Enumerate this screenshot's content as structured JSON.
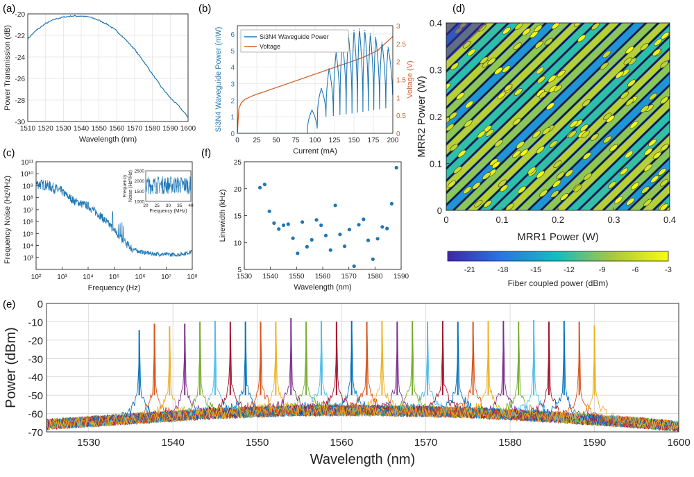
{
  "panels": {
    "a": "(a)",
    "b": "(b)",
    "c": "(c)",
    "d": "(d)",
    "e": "(e)",
    "f": "(f)"
  },
  "colors": {
    "blue": "#1f77b4",
    "orange": "#d1622a",
    "comb": [
      "#0072BD",
      "#D95319",
      "#EDB120",
      "#7E2F8E",
      "#77AC30",
      "#4DBEEE",
      "#A2142F"
    ]
  },
  "chart_data": [
    {
      "id": "a",
      "type": "line",
      "xlabel": "Wavelength (nm)",
      "ylabel": "Power Transmission (dB)",
      "xlim": [
        1510,
        1600
      ],
      "ylim": [
        -30,
        -20
      ],
      "xticks": [
        1510,
        1520,
        1530,
        1540,
        1550,
        1560,
        1570,
        1580,
        1590,
        1600
      ],
      "yticks": [
        -20,
        -22,
        -24,
        -26,
        -28,
        -30
      ],
      "grid": true,
      "x": [
        1510,
        1515,
        1520,
        1525,
        1530,
        1535,
        1540,
        1545,
        1550,
        1555,
        1560,
        1565,
        1570,
        1575,
        1580,
        1585,
        1590,
        1595,
        1600
      ],
      "y": [
        -22.3,
        -21.5,
        -20.9,
        -20.5,
        -20.3,
        -20.2,
        -20.2,
        -20.3,
        -20.6,
        -21.0,
        -21.6,
        -22.4,
        -23.3,
        -24.4,
        -25.6,
        -26.8,
        -27.8,
        -28.6,
        -29.6
      ]
    },
    {
      "id": "b",
      "type": "line",
      "xlabel": "Current (mA)",
      "ylabel": "Si3N4 Waveguide Power (mW)",
      "y2label": "Voltage (V)",
      "xlim": [
        0,
        200
      ],
      "ylim": [
        0,
        6.5
      ],
      "y2lim": [
        0,
        3
      ],
      "xticks": [
        0,
        25,
        50,
        75,
        100,
        125,
        150,
        175,
        200
      ],
      "yticks": [
        0,
        1,
        2,
        3,
        4,
        5,
        6
      ],
      "y2ticks": [
        "0",
        "0.5",
        "1",
        "1.5",
        "2",
        "2.5",
        "3"
      ],
      "legend": [
        "Si3N4 Waveguide Power",
        "Voltage"
      ],
      "legend_position": "top-left",
      "grid": true,
      "voltage": {
        "x": [
          0,
          2,
          5,
          10,
          20,
          40,
          60,
          80,
          100,
          120,
          140,
          160,
          180,
          200
        ],
        "y": [
          0,
          0.7,
          0.85,
          0.95,
          1.05,
          1.2,
          1.35,
          1.5,
          1.65,
          1.8,
          1.95,
          2.1,
          2.3,
          2.7
        ]
      },
      "power_peaks": {
        "x": [
          96,
          108,
          118,
          127,
          135,
          143,
          150,
          157,
          164,
          171,
          178,
          186,
          194
        ],
        "y": [
          1.4,
          2.7,
          3.9,
          4.9,
          5.6,
          5.9,
          6.2,
          6.3,
          6.2,
          6.0,
          5.8,
          5.5,
          5.2
        ]
      },
      "power_onset_mA": 90
    },
    {
      "id": "c",
      "type": "line",
      "xlabel": "Frequency (Hz)",
      "ylabel": "Frequency Noise (Hz²/Hz)",
      "xscale": "log",
      "yscale": "log",
      "xlim": [
        100,
        100000000
      ],
      "ylim": [
        100,
        100000000000
      ],
      "xtick_labels": [
        "10²",
        "10³",
        "10⁴",
        "10⁵",
        "10⁶",
        "10⁷",
        "10⁸"
      ],
      "ytick_labels": [
        "10³",
        "10⁴",
        "10⁵",
        "10⁶",
        "10⁷",
        "10⁸",
        "10⁹",
        "10¹⁰",
        "10¹¹"
      ],
      "x": [
        100,
        300,
        1000,
        3000,
        10000,
        30000,
        100000,
        200000,
        500000,
        1000000,
        3000000,
        10000000,
        30000000,
        100000000
      ],
      "y": [
        1500000000,
        1000000000,
        300000000,
        50000000,
        20000000,
        3000000,
        200000,
        30000,
        5000,
        3000,
        2000,
        1800,
        1700,
        3000
      ],
      "inset": {
        "xlabel": "Frequency (MHz)",
        "ylabel": "Frequency Noise (Hz²/Hz)",
        "xlim": [
          20,
          40
        ],
        "ylim": [
          1000,
          2500
        ],
        "xticks": [
          20,
          25,
          30,
          35,
          40
        ],
        "yticks": [
          1000,
          1500,
          2000,
          2500
        ],
        "mean": 1800
      }
    },
    {
      "id": "d",
      "type": "heatmap",
      "xlabel": "MRR1 Power (W)",
      "ylabel": "MRR2 Power (W)",
      "xlim": [
        0,
        0.4
      ],
      "ylim": [
        0,
        0.4
      ],
      "xticks": [
        "0",
        "0.1",
        "0.2",
        "0.3",
        "0.4"
      ],
      "yticks": [
        "0",
        "0.1",
        "0.2",
        "0.3",
        "0.4"
      ],
      "colorbar_label": "Fiber coupled power (dBm)",
      "colorbar_ticks": [
        "-21",
        "-18",
        "-15",
        "-12",
        "-9",
        "-6",
        "-3"
      ],
      "colorbar_range": [
        -23,
        -3
      ]
    },
    {
      "id": "e",
      "type": "line",
      "xlabel": "Wavelength (nm)",
      "ylabel": "Power (dBm)",
      "xlim": [
        1525,
        1600
      ],
      "ylim": [
        -70,
        0
      ],
      "xticks": [
        1530,
        1540,
        1550,
        1560,
        1570,
        1580,
        1590,
        1600
      ],
      "yticks": [
        0,
        -10,
        -20,
        -30,
        -40,
        -50,
        -60,
        -70
      ],
      "grid": true,
      "peak_wavelengths": [
        1536.0,
        1537.8,
        1539.6,
        1541.4,
        1543.2,
        1545.0,
        1546.8,
        1548.6,
        1550.4,
        1552.2,
        1554.0,
        1555.8,
        1557.6,
        1559.4,
        1561.2,
        1563.0,
        1564.8,
        1566.6,
        1568.4,
        1570.2,
        1572.0,
        1573.8,
        1575.6,
        1577.4,
        1579.2,
        1581.0,
        1582.8,
        1584.6,
        1586.4,
        1588.2,
        1590.0
      ],
      "peak_powers": [
        -14.5,
        -11,
        -12.5,
        -11,
        -10,
        -9.5,
        -10,
        -10,
        -10,
        -10,
        -8,
        -10,
        -9.5,
        -10,
        -9.5,
        -10,
        -9.5,
        -10,
        -9.5,
        -10,
        -9.5,
        -10,
        -10,
        -9.5,
        -9.5,
        -10,
        -9,
        -10,
        -9.5,
        -10,
        -12
      ],
      "floor": {
        "x": [
          1525,
          1535,
          1545,
          1555,
          1565,
          1575,
          1585,
          1595,
          1600
        ],
        "y": [
          -64,
          -61,
          -58,
          -56.5,
          -56.5,
          -57.5,
          -60,
          -63,
          -65
        ]
      }
    },
    {
      "id": "f",
      "type": "scatter",
      "xlabel": "Wavelength (nm)",
      "ylabel": "Linewidth (kHz)",
      "xlim": [
        1530,
        1590
      ],
      "ylim": [
        5,
        25
      ],
      "xticks": [
        1530,
        1540,
        1550,
        1560,
        1570,
        1580,
        1590
      ],
      "yticks": [
        5,
        10,
        15,
        20,
        25
      ],
      "x": [
        1536.0,
        1537.8,
        1539.6,
        1541.4,
        1543.2,
        1545.0,
        1546.8,
        1548.6,
        1550.4,
        1552.2,
        1554.0,
        1555.8,
        1557.6,
        1559.4,
        1561.2,
        1563.0,
        1564.8,
        1566.6,
        1568.4,
        1570.2,
        1572.0,
        1573.8,
        1575.6,
        1577.4,
        1579.2,
        1581.0,
        1582.8,
        1584.6,
        1586.4,
        1588.2
      ],
      "y": [
        20.2,
        20.8,
        15.8,
        13.6,
        12.5,
        13.2,
        13.4,
        10.8,
        8.0,
        13.8,
        9.2,
        10.5,
        14.2,
        13.2,
        11.3,
        8.6,
        16.9,
        11.5,
        9.3,
        12.4,
        5.6,
        13.3,
        14.3,
        10.4,
        6.9,
        10.7,
        12.9,
        12.6,
        17.2,
        23.9
      ]
    }
  ]
}
